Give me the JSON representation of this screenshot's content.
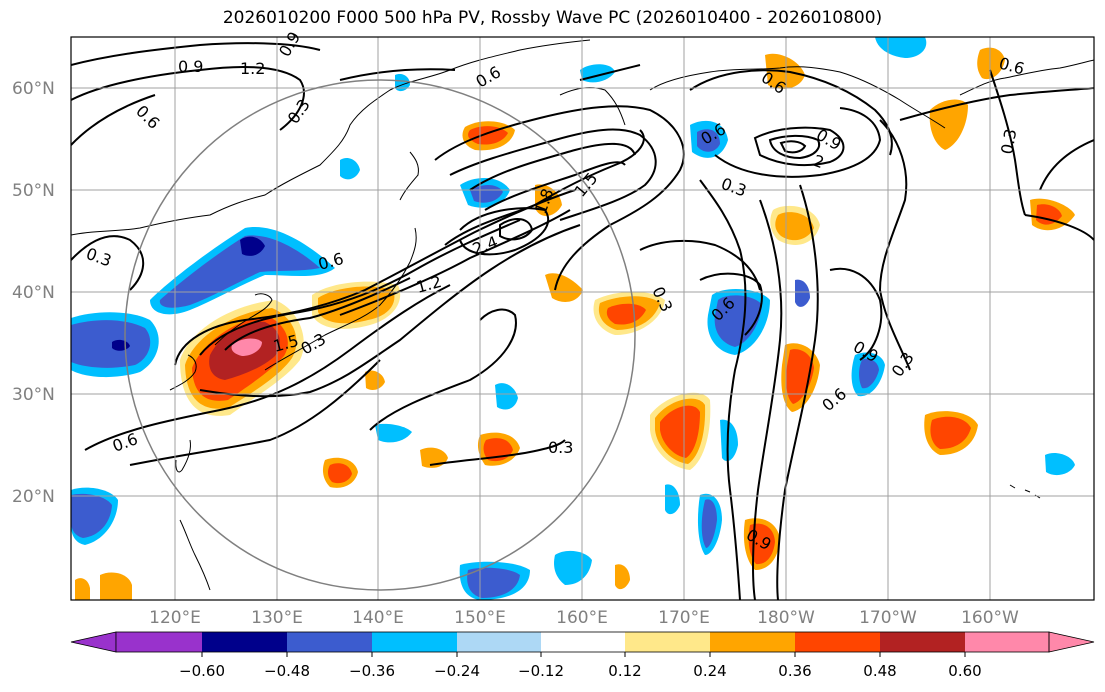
{
  "title": "2026010200 F000 500 hPa PV, Rossby Wave PC (2026010400 - 2026010800)",
  "latitude_labels": [
    "60°N",
    "50°N",
    "40°N",
    "30°N",
    "20°N"
  ],
  "longitude_labels": [
    "120°E",
    "130°E",
    "140°E",
    "150°E",
    "160°E",
    "170°E",
    "180°W",
    "170°W",
    "160°W"
  ],
  "contour_labels": [
    "0.9",
    "1.2",
    "0.9",
    "0.6",
    "0.6",
    "0.3",
    "0.6",
    "0.3",
    "0.6",
    "0.9",
    "0.6",
    "0.3",
    "2",
    "0.3",
    "1.5",
    "1.8",
    "2.4",
    "1.2",
    "0.3",
    "0.3",
    "0.6",
    "0.6",
    "0.9",
    "0.3",
    "0.6",
    "1.5",
    "0.3",
    "0.6",
    "0.9"
  ],
  "colorbar": {
    "tick_labels": [
      "−0.60",
      "−0.48",
      "−0.36",
      "−0.24",
      "−0.12",
      "0.12",
      "0.24",
      "0.36",
      "0.48",
      "0.60"
    ],
    "colors": [
      "#9932cc",
      "#00008b",
      "#3c5ccf",
      "#00bfff",
      "#add8f5",
      "#ffffff",
      "#ffe88a",
      "#ffa500",
      "#ff4500",
      "#b22222",
      "#ff88aa"
    ]
  },
  "colors": {
    "contour": "#000000",
    "grid": "#a0a0a0",
    "axis_labels": "#808080",
    "circle": "#808080"
  }
}
